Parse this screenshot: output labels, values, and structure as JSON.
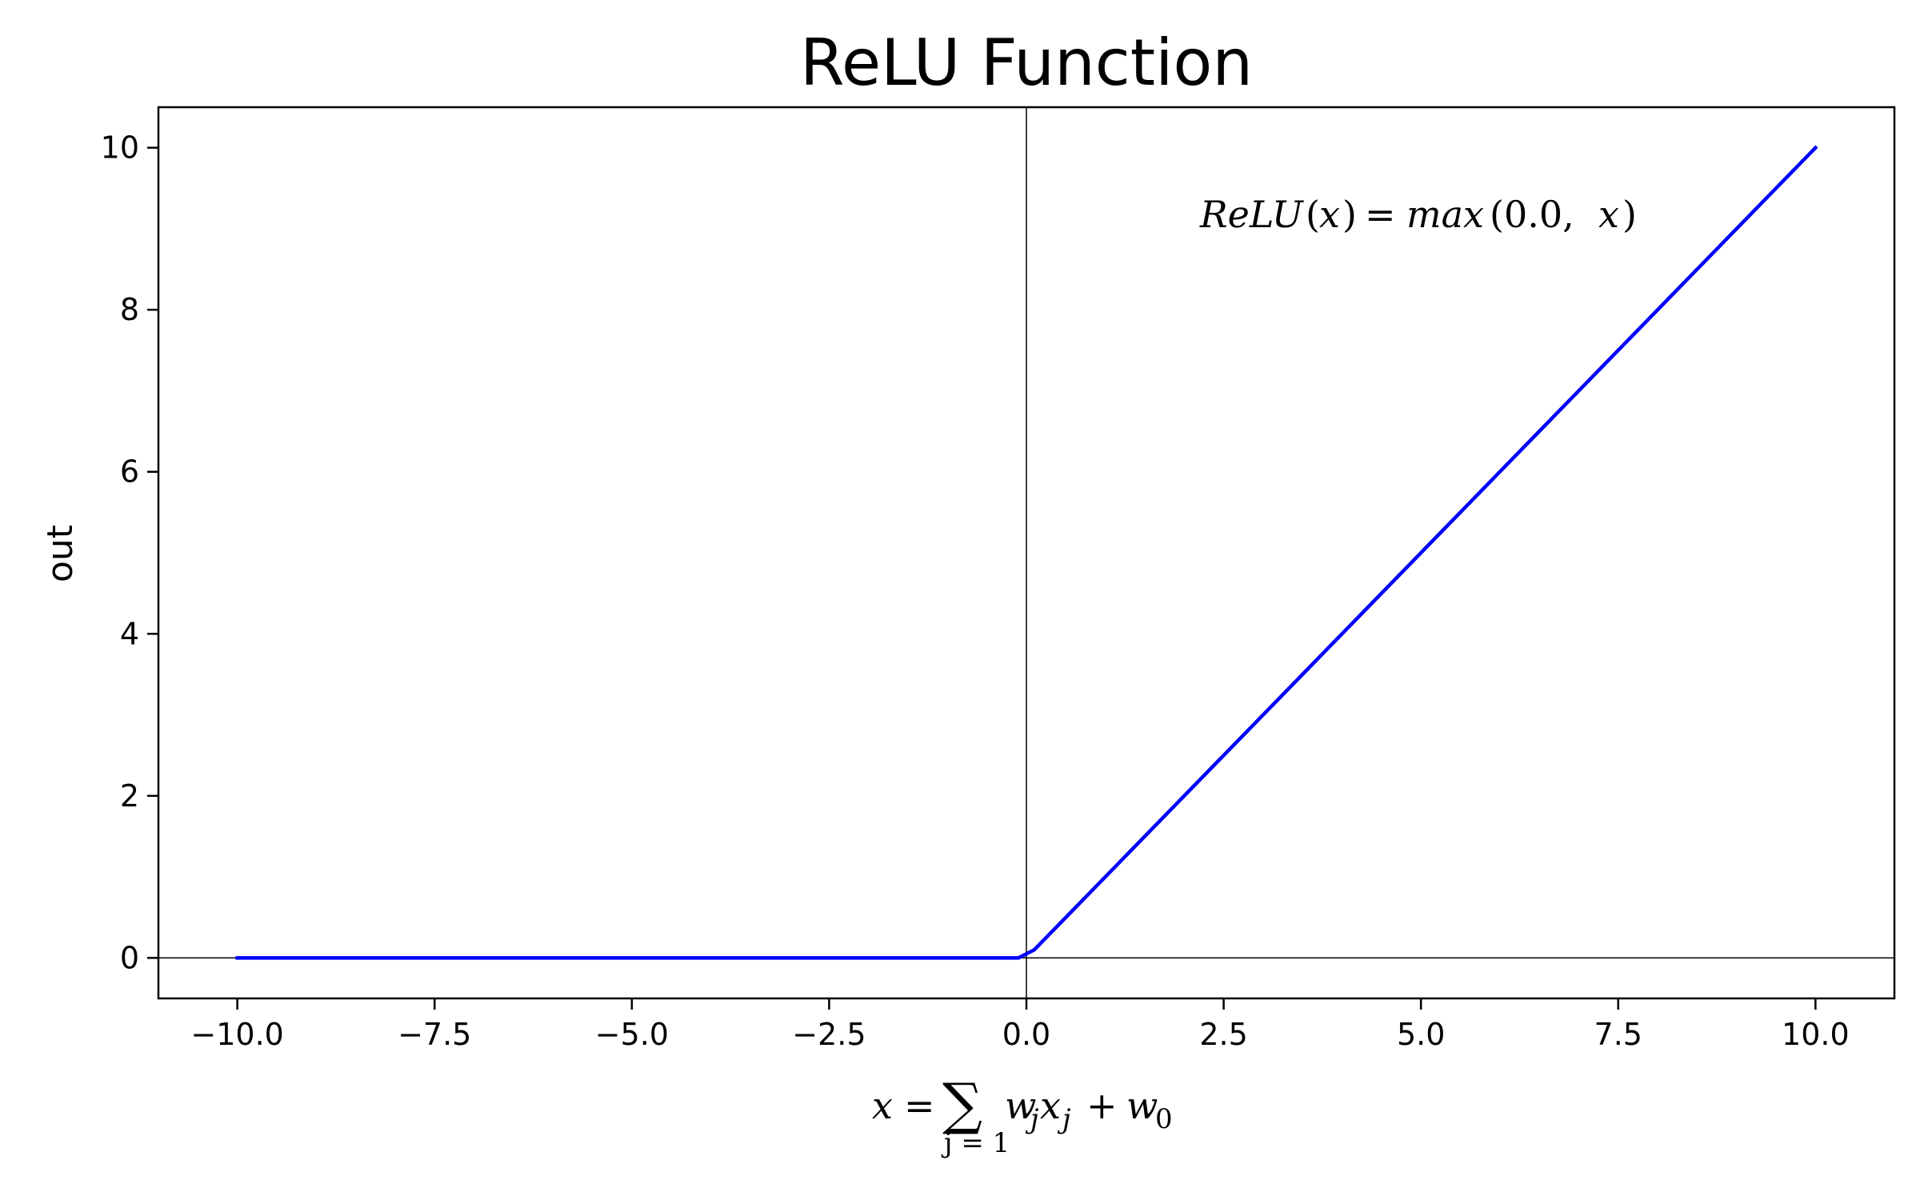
{
  "chart_data": {
    "type": "line",
    "title": "ReLU Function",
    "ylabel": "out",
    "xlabel": {
      "lhs": "x",
      "equals": "=",
      "sum_symbol": "∑",
      "sum_index": "j = 1",
      "term_w": "w",
      "term_w_sub": "j",
      "term_x": "x",
      "term_x_sub": "j",
      "plus": "+",
      "bias": "w",
      "bias_sub": "0"
    },
    "annotation": {
      "fn": "ReLU",
      "open": "(",
      "arg": "x",
      "close": ")",
      "equals": "=",
      "max": "max",
      "args_open": "(0.0,",
      "args_x": "x",
      "args_close": ")"
    },
    "xlim": [
      -11,
      11
    ],
    "ylim": [
      -0.5,
      10.5
    ],
    "xticks": [
      -10.0,
      -7.5,
      -5.0,
      -2.5,
      0.0,
      2.5,
      5.0,
      7.5,
      10.0
    ],
    "xtick_labels": [
      "−10.0",
      "−7.5",
      "−5.0",
      "−2.5",
      "0.0",
      "2.5",
      "5.0",
      "7.5",
      "10.0"
    ],
    "yticks": [
      0,
      2,
      4,
      6,
      8,
      10
    ],
    "ytick_labels": [
      "0",
      "2",
      "4",
      "6",
      "8",
      "10"
    ],
    "reference_lines": {
      "x": 0,
      "y": 0
    },
    "series": [
      {
        "color": "#0000ff",
        "x": [
          -10.0,
          -0.1,
          0.1,
          10.0
        ],
        "y": [
          0.0,
          0.0,
          0.1,
          10.0
        ]
      }
    ],
    "grid": false
  }
}
